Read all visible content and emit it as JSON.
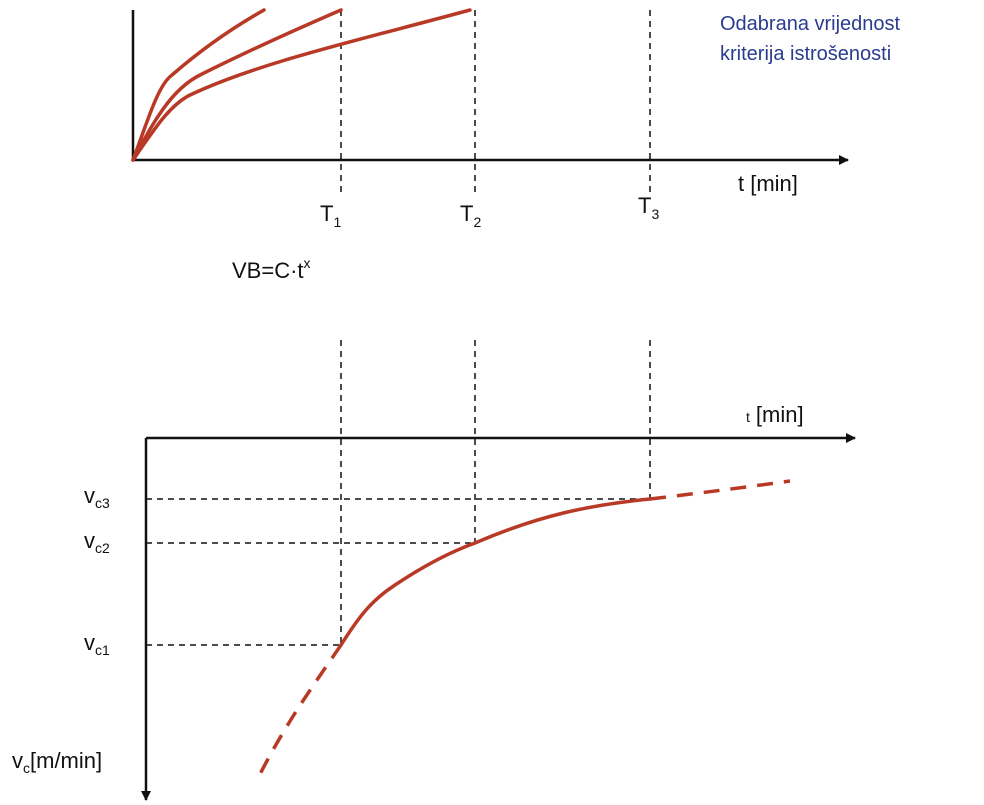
{
  "top_panel": {
    "x_axis_label": "t [min]",
    "tick_labels": [
      {
        "main": "T",
        "sub": "1"
      },
      {
        "main": "T",
        "sub": "2"
      },
      {
        "main": "T",
        "sub": "3"
      }
    ],
    "note_lines": [
      "Odabrana vrijednost",
      "kriterija istrošenosti"
    ],
    "formula": {
      "main": "VB=C·t",
      "sup": "x"
    }
  },
  "bottom_panel": {
    "x_axis_unit_prefix": "t",
    "x_axis_unit": "[min]",
    "y_axis_label": {
      "main": "v",
      "sub": "c",
      "rest": "[m/min]"
    },
    "y_levels": [
      {
        "main": "v",
        "sub": "c3"
      },
      {
        "main": "v",
        "sub": "c2"
      },
      {
        "main": "v",
        "sub": "c1"
      }
    ]
  },
  "colors": {
    "curve": "#b83a26",
    "axis": "#111111",
    "note": "#2a3c8f"
  }
}
